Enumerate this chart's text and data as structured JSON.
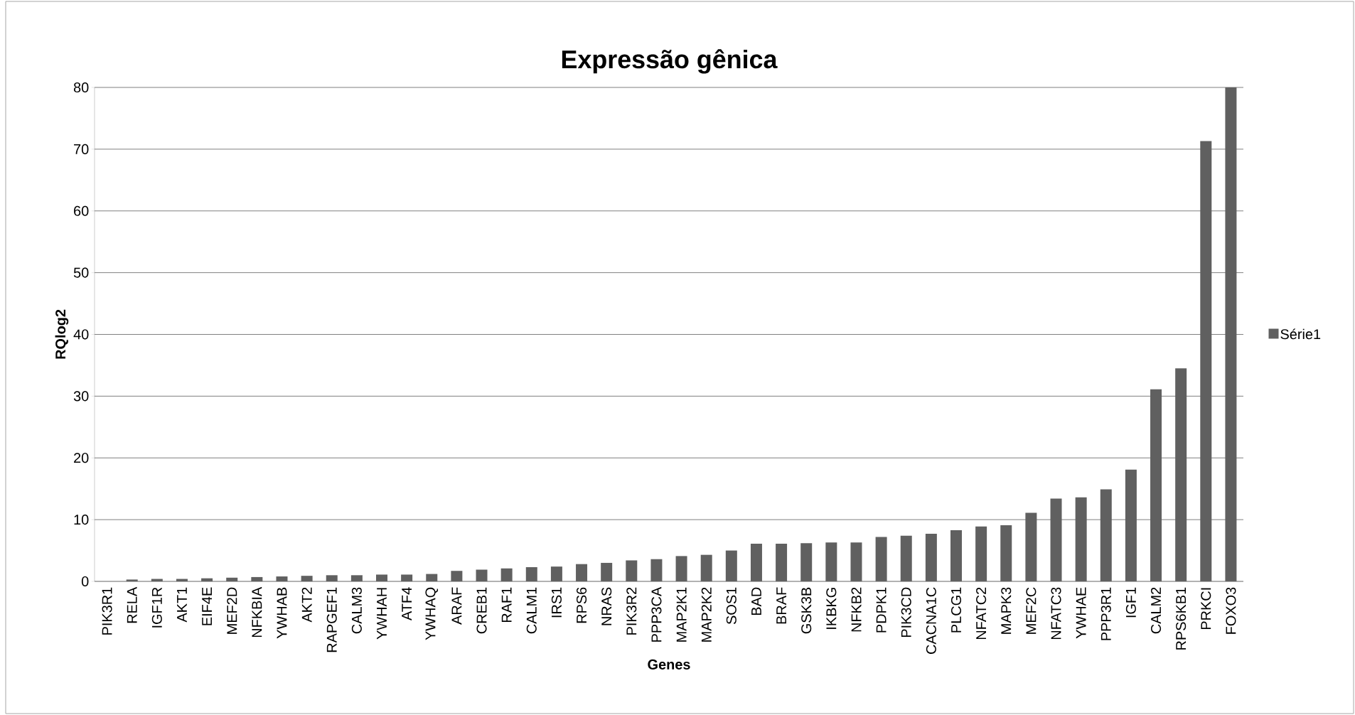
{
  "chart_data": {
    "type": "bar",
    "title": "Expressão gênica",
    "xlabel": "Genes",
    "ylabel": "RQlog2",
    "categories": [
      "PIK3R1",
      "RELA",
      "IGF1R",
      "AKT1",
      "EIF4E",
      "MEF2D",
      "NFKBIA",
      "YWHAB",
      "AKT2",
      "RAPGEF1",
      "CALM3",
      "YWHAH",
      "ATF4",
      "YWHAQ",
      "ARAF",
      "CREB1",
      "RAF1",
      "CALM1",
      "IRS1",
      "RPS6",
      "NRAS",
      "PIK3R2",
      "PPP3CA",
      "MAP2K1",
      "MAP2K2",
      "SOS1",
      "BAD",
      "BRAF",
      "GSK3B",
      "IKBKG",
      "NFKB2",
      "PDPK1",
      "PIK3CD",
      "CACNA1C",
      "PLCG1",
      "NFATC2",
      "MAPK3",
      "MEF2C",
      "NFATC3",
      "YWHAE",
      "PPP3R1",
      "IGF1",
      "CALM2",
      "RPS6KB1",
      "PRKCI",
      "FOXO3"
    ],
    "series": [
      {
        "name": "Série1",
        "color": "#606060",
        "values": [
          null,
          0.3,
          0.4,
          0.4,
          0.5,
          0.6,
          0.7,
          0.8,
          0.9,
          1.0,
          1.0,
          1.1,
          1.1,
          1.2,
          1.7,
          1.9,
          2.1,
          2.3,
          2.4,
          2.8,
          3.0,
          3.4,
          3.6,
          4.1,
          4.3,
          5.0,
          6.1,
          6.1,
          6.2,
          6.3,
          6.3,
          7.2,
          7.4,
          7.7,
          8.3,
          8.9,
          9.1,
          11.1,
          13.4,
          13.6,
          14.9,
          18.1,
          31.1,
          34.5,
          71.3,
          80.0
        ]
      }
    ],
    "ylim": [
      0,
      80
    ],
    "yticks": [
      0,
      10,
      20,
      30,
      40,
      50,
      60,
      70,
      80
    ],
    "grid": "y",
    "legend": "right"
  }
}
